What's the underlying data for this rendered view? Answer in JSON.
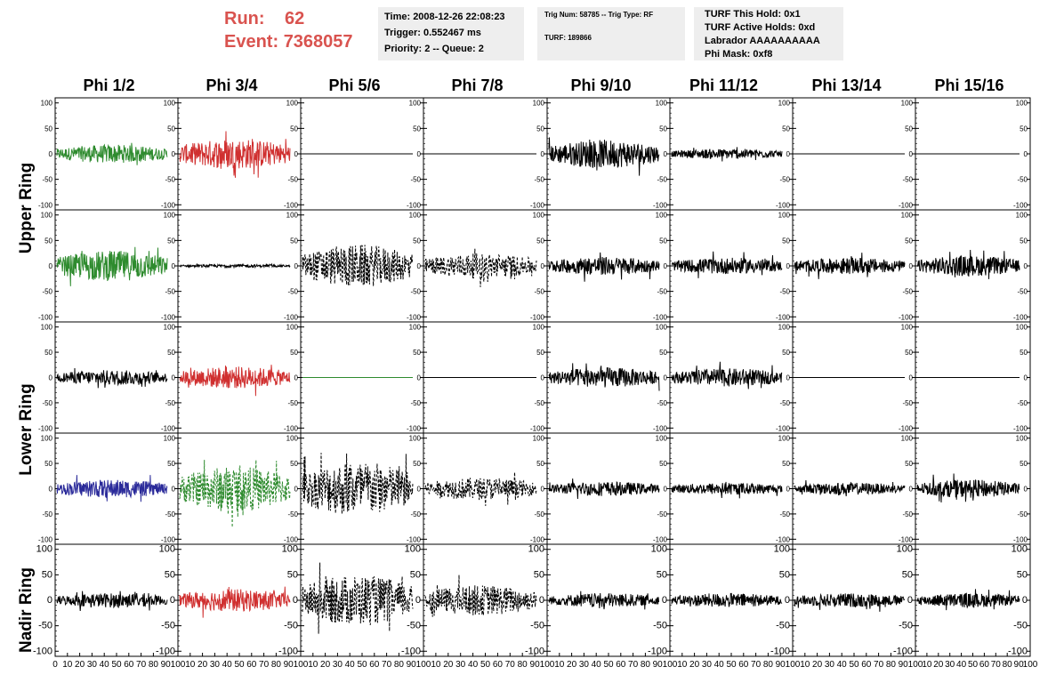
{
  "header": {
    "run_label": "Run:",
    "run_value": "62",
    "event_label": "Event:",
    "event_value": "7368057",
    "time": "Time: 2008-12-26 22:08:23",
    "trigger": "Trigger: 0.552467 ms",
    "priority": "Priority: 2 -- Queue: 2",
    "trig_num": "Trig Num: 58785 -- Trig Type: RF",
    "turf": "TURF: 189866",
    "turf_this_hold": "TURF This Hold: 0x1",
    "turf_active_holds": "TURF Active Holds: 0xd",
    "labrador": "Labrador AAAAAAAAAA",
    "phi_mask": "Phi Mask: 0xf8"
  },
  "columns": [
    "Phi 1/2",
    "Phi 3/4",
    "Phi 5/6",
    "Phi 7/8",
    "Phi 9/10",
    "Phi 11/12",
    "Phi 13/14",
    "Phi 15/16"
  ],
  "ring_labels": [
    "Upper Ring",
    "Lower Ring",
    "Nadir Ring"
  ],
  "colors": {
    "green": "#2e8b2e",
    "red": "#d03030",
    "blue": "#2a2a9a",
    "black": "#000000",
    "title_red": "#d9534f",
    "info_bg": "#eeeeee"
  },
  "chart_data": {
    "type": "line",
    "xlim": [
      0,
      100
    ],
    "ylim": [
      -110,
      110
    ],
    "y_ticks": [
      -100,
      -50,
      0,
      50,
      100
    ],
    "x_ticks": [
      0,
      10,
      20,
      30,
      40,
      50,
      60,
      70,
      80,
      90,
      100
    ],
    "panel_rows": [
      [
        {
          "color": "green",
          "style": "solid",
          "amplitude": 18
        },
        {
          "color": "red",
          "style": "solid",
          "amplitude": 30
        },
        {
          "color": "black",
          "style": "flat",
          "amplitude": 0
        },
        {
          "color": "black",
          "style": "flat",
          "amplitude": 0
        },
        {
          "color": "black",
          "style": "solid",
          "amplitude": 28
        },
        {
          "color": "black",
          "style": "solid",
          "amplitude": 10
        },
        {
          "color": "black",
          "style": "flat",
          "amplitude": 0
        },
        {
          "color": "black",
          "style": "flat",
          "amplitude": 0
        }
      ],
      [
        {
          "color": "green",
          "style": "solid",
          "amplitude": 30
        },
        {
          "color": "black",
          "style": "solid",
          "amplitude": 3
        },
        {
          "color": "black",
          "style": "dashed",
          "amplitude": 42
        },
        {
          "color": "black",
          "style": "dashed",
          "amplitude": 25
        },
        {
          "color": "black",
          "style": "solid",
          "amplitude": 18
        },
        {
          "color": "black",
          "style": "solid",
          "amplitude": 16
        },
        {
          "color": "black",
          "style": "solid",
          "amplitude": 16
        },
        {
          "color": "black",
          "style": "solid",
          "amplitude": 20
        }
      ],
      [
        {
          "color": "black",
          "style": "solid",
          "amplitude": 15
        },
        {
          "color": "red",
          "style": "solid",
          "amplitude": 22
        },
        {
          "color": "green",
          "style": "flat",
          "amplitude": 0
        },
        {
          "color": "black",
          "style": "flat",
          "amplitude": 0
        },
        {
          "color": "black",
          "style": "solid",
          "amplitude": 20
        },
        {
          "color": "black",
          "style": "solid",
          "amplitude": 18
        },
        {
          "color": "black",
          "style": "flat",
          "amplitude": 0
        },
        {
          "color": "black",
          "style": "flat",
          "amplitude": 0
        }
      ],
      [
        {
          "color": "blue",
          "style": "solid",
          "amplitude": 18
        },
        {
          "color": "green",
          "style": "dashed",
          "amplitude": 45
        },
        {
          "color": "black",
          "style": "dashed",
          "amplitude": 55
        },
        {
          "color": "black",
          "style": "dashed",
          "amplitude": 22
        },
        {
          "color": "black",
          "style": "solid",
          "amplitude": 14
        },
        {
          "color": "black",
          "style": "solid",
          "amplitude": 12
        },
        {
          "color": "black",
          "style": "solid",
          "amplitude": 12
        },
        {
          "color": "black",
          "style": "solid",
          "amplitude": 18
        }
      ],
      [
        {
          "color": "black",
          "style": "solid",
          "amplitude": 14
        },
        {
          "color": "red",
          "style": "solid",
          "amplitude": 22
        },
        {
          "color": "black",
          "style": "dashed",
          "amplitude": 50
        },
        {
          "color": "black",
          "style": "dashed",
          "amplitude": 30
        },
        {
          "color": "black",
          "style": "solid",
          "amplitude": 14
        },
        {
          "color": "black",
          "style": "solid",
          "amplitude": 14
        },
        {
          "color": "black",
          "style": "solid",
          "amplitude": 14
        },
        {
          "color": "black",
          "style": "solid",
          "amplitude": 14
        }
      ]
    ]
  }
}
